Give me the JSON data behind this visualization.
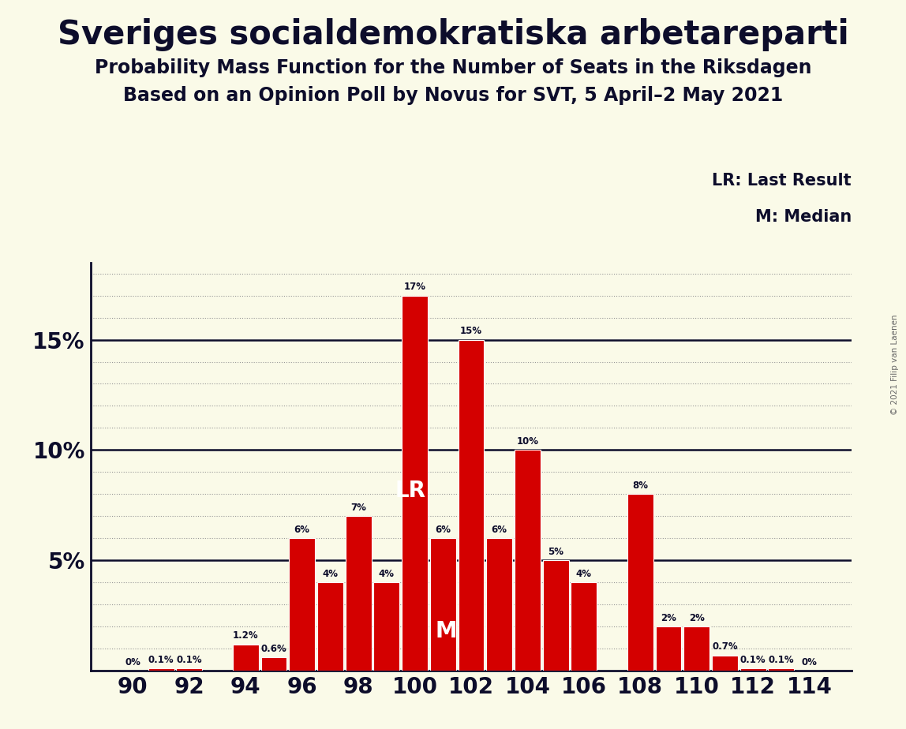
{
  "title_line1": "Sveriges socialdemokratiska arbetareparti",
  "title_line2": "Probability Mass Function for the Number of Seats in the Riksdagen",
  "title_line3": "Based on an Opinion Poll by Novus for SVT, 5 April–2 May 2021",
  "copyright_text": "© 2021 Filip van Laenen",
  "legend_lr": "LR: Last Result",
  "legend_m": "M: Median",
  "seats": [
    90,
    91,
    92,
    93,
    94,
    95,
    96,
    97,
    98,
    99,
    100,
    101,
    102,
    103,
    104,
    105,
    106,
    107,
    108,
    109,
    110,
    111,
    112,
    113,
    114
  ],
  "probabilities": [
    0.0,
    0.1,
    0.1,
    0.0,
    1.2,
    0.6,
    6.0,
    4.0,
    7.0,
    4.0,
    17.0,
    6.0,
    15.0,
    6.0,
    10.0,
    5.0,
    4.0,
    0.0,
    8.0,
    2.0,
    2.0,
    0.7,
    0.1,
    0.1,
    0.0
  ],
  "bar_labels": [
    "0%",
    "0.1%",
    "0.1%",
    "",
    "1.2%",
    "0.6%",
    "6%",
    "4%",
    "7%",
    "4%",
    "17%",
    "6%",
    "15%",
    "6%",
    "10%",
    "5%",
    "4%",
    "",
    "8%",
    "2%",
    "2%",
    "0.7%",
    "0.1%",
    "0.1%",
    "0%"
  ],
  "bar_color": "#d40000",
  "background_color": "#fafae8",
  "text_color": "#0d0d2b",
  "lr_seat": 100,
  "median_seat": 101,
  "ylim_max": 18.5,
  "bar_width": 0.92
}
